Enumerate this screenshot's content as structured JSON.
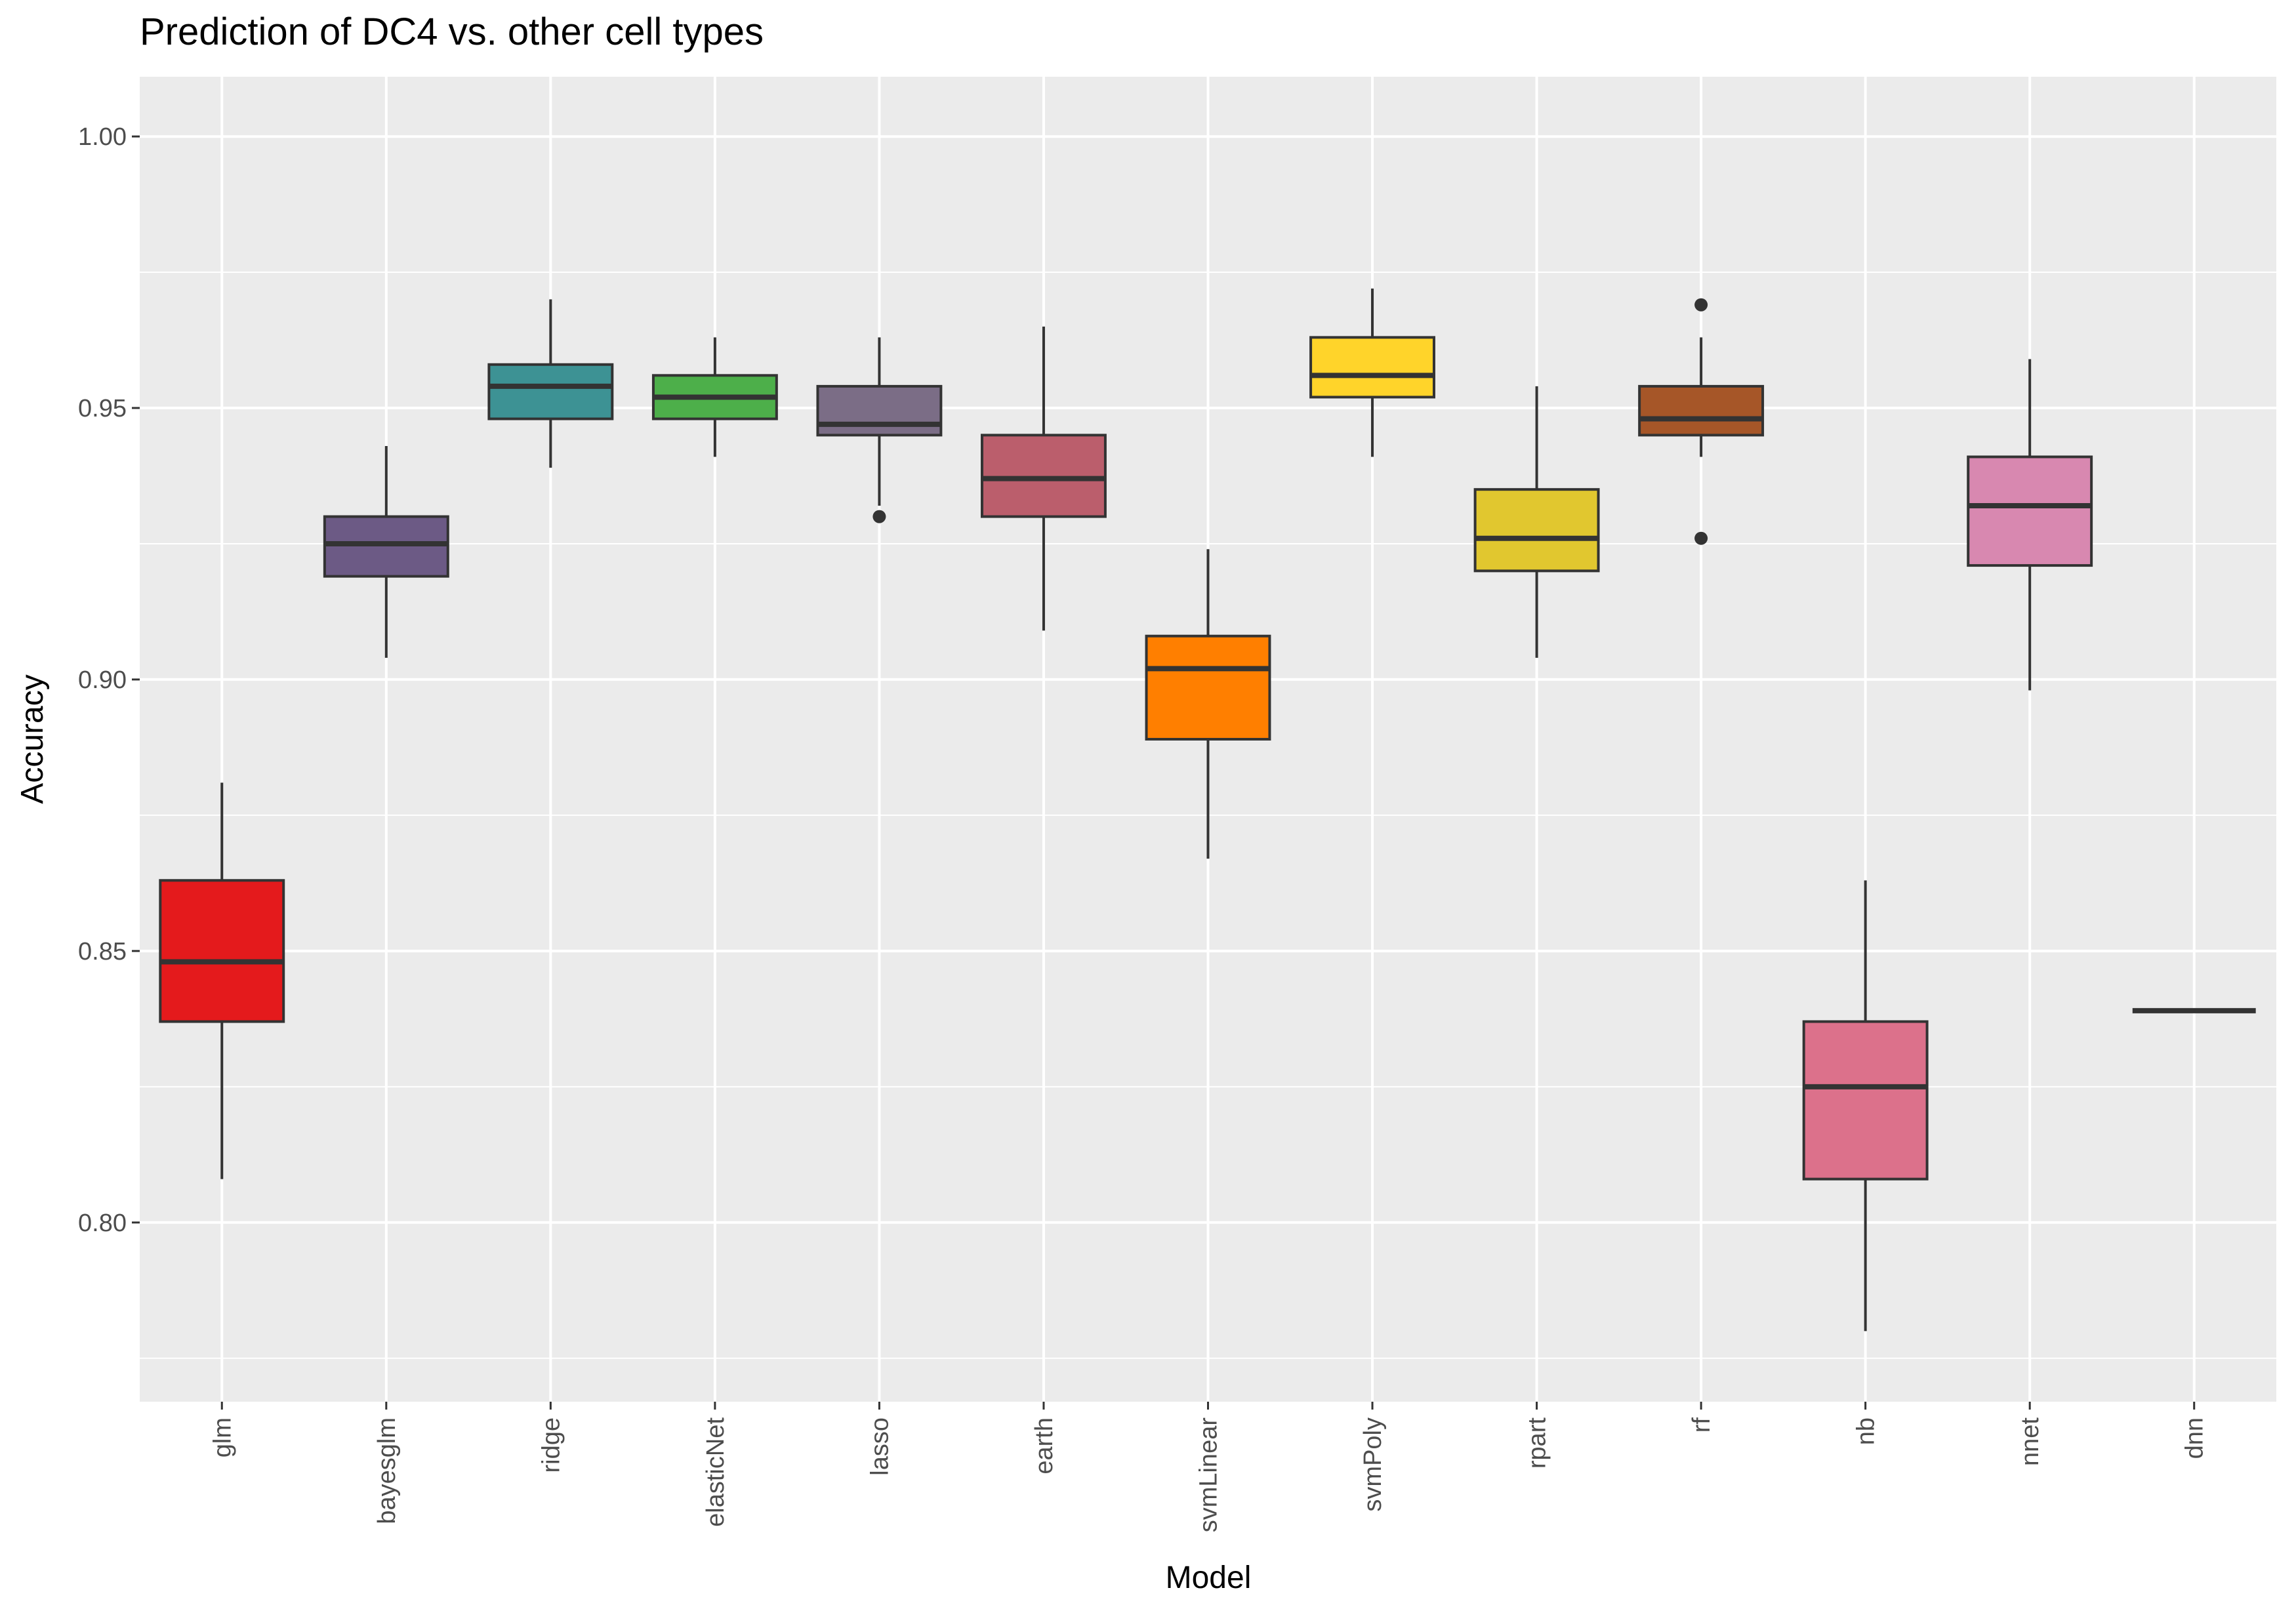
{
  "chart_data": {
    "type": "boxplot",
    "title": "Prediction of DC4 vs. other cell types",
    "xlabel": "Model",
    "ylabel": "Accuracy",
    "ylim": [
      0.767,
      1.011
    ],
    "yticks": [
      0.8,
      0.85,
      0.9,
      0.95,
      1.0
    ],
    "ytick_labels": [
      "0.80",
      "0.85",
      "0.90",
      "0.95",
      "1.00"
    ],
    "grid": true,
    "legend": "none",
    "categories": [
      "glm",
      "bayesglm",
      "ridge",
      "elasticNet",
      "lasso",
      "earth",
      "svmLinear",
      "svmPoly",
      "rpart",
      "rf",
      "nb",
      "nnet",
      "dnn"
    ],
    "boxes": [
      {
        "name": "glm",
        "color": "#E41A1C",
        "whisker_low": 0.808,
        "q1": 0.837,
        "median": 0.848,
        "q3": 0.863,
        "whisker_high": 0.881,
        "outliers": []
      },
      {
        "name": "bayesglm",
        "color": "#6C5A85",
        "whisker_low": 0.904,
        "q1": 0.919,
        "median": 0.925,
        "q3": 0.93,
        "whisker_high": 0.943,
        "outliers": []
      },
      {
        "name": "ridge",
        "color": "#3D9294",
        "whisker_low": 0.939,
        "q1": 0.948,
        "median": 0.954,
        "q3": 0.958,
        "whisker_high": 0.97,
        "outliers": []
      },
      {
        "name": "elasticNet",
        "color": "#4DAF4A",
        "whisker_low": 0.941,
        "q1": 0.948,
        "median": 0.952,
        "q3": 0.956,
        "whisker_high": 0.963,
        "outliers": []
      },
      {
        "name": "lasso",
        "color": "#7B6D86",
        "whisker_low": 0.932,
        "q1": 0.945,
        "median": 0.947,
        "q3": 0.954,
        "whisker_high": 0.963,
        "outliers": [
          0.93
        ]
      },
      {
        "name": "earth",
        "color": "#BB5E6C",
        "whisker_low": 0.909,
        "q1": 0.93,
        "median": 0.937,
        "q3": 0.945,
        "whisker_high": 0.965,
        "outliers": []
      },
      {
        "name": "svmLinear",
        "color": "#FF7F00",
        "whisker_low": 0.867,
        "q1": 0.889,
        "median": 0.902,
        "q3": 0.908,
        "whisker_high": 0.924,
        "outliers": []
      },
      {
        "name": "svmPoly",
        "color": "#FFD42A",
        "whisker_low": 0.941,
        "q1": 0.952,
        "median": 0.956,
        "q3": 0.963,
        "whisker_high": 0.972,
        "outliers": []
      },
      {
        "name": "rpart",
        "color": "#E1C72F",
        "whisker_low": 0.904,
        "q1": 0.92,
        "median": 0.926,
        "q3": 0.935,
        "whisker_high": 0.954,
        "outliers": []
      },
      {
        "name": "rf",
        "color": "#A65628",
        "whisker_low": 0.941,
        "q1": 0.945,
        "median": 0.948,
        "q3": 0.954,
        "whisker_high": 0.963,
        "outliers": [
          0.969,
          0.926
        ]
      },
      {
        "name": "nb",
        "color": "#DC718B",
        "whisker_low": 0.78,
        "q1": 0.808,
        "median": 0.825,
        "q3": 0.837,
        "whisker_high": 0.863,
        "outliers": []
      },
      {
        "name": "nnet",
        "color": "#D888B0",
        "whisker_low": 0.898,
        "q1": 0.921,
        "median": 0.932,
        "q3": 0.941,
        "whisker_high": 0.959,
        "outliers": []
      },
      {
        "name": "dnn",
        "color": "#999999",
        "whisker_low": 0.839,
        "q1": 0.839,
        "median": 0.839,
        "q3": 0.839,
        "whisker_high": 0.839,
        "outliers": []
      }
    ]
  }
}
